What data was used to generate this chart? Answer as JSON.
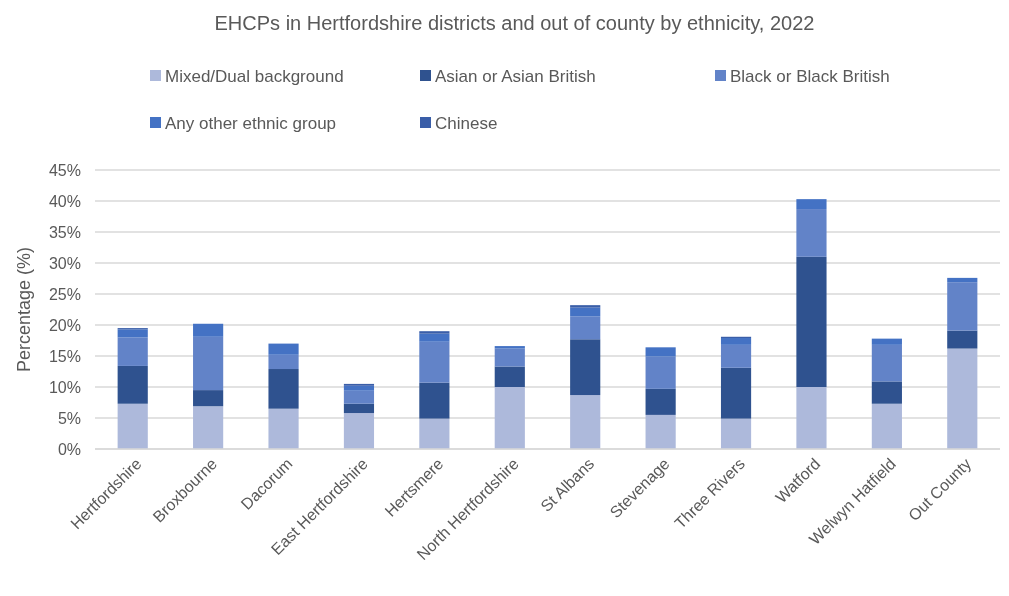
{
  "chart_data": {
    "type": "bar",
    "stacked": true,
    "title": "EHCPs in Hertfordshire districts and out of county by ethnicity, 2022",
    "ylabel": "Percentage (%)",
    "categories": [
      "Hertfordshire",
      "Broxbourne",
      "Dacorum",
      "East Hertfordshire",
      "Hertsmere",
      "North Hertfordshire",
      "St Albans",
      "Stevenage",
      "Three Rivers",
      "Watford",
      "Welwyn Hatfield",
      "Out County"
    ],
    "series": [
      {
        "name": "Mixed/Dual background",
        "color": "#adb9db",
        "values": [
          7.3,
          6.9,
          6.5,
          5.8,
          4.9,
          10.0,
          8.7,
          5.5,
          4.9,
          10.0,
          7.3,
          16.2
        ]
      },
      {
        "name": "Asian or Asian British",
        "color": "#2f528f",
        "values": [
          6.1,
          2.6,
          6.4,
          1.5,
          5.8,
          3.3,
          9.0,
          4.2,
          8.2,
          21.0,
          3.6,
          2.9
        ]
      },
      {
        "name": "Black or Black British",
        "color": "#6283c8",
        "values": [
          4.6,
          8.6,
          2.3,
          2.1,
          6.6,
          2.9,
          3.7,
          5.2,
          3.7,
          7.7,
          5.9,
          7.8
        ]
      },
      {
        "name": "Any other ethnic group",
        "color": "#4472c4",
        "values": [
          1.3,
          2.1,
          1.8,
          0.8,
          1.3,
          0.4,
          1.4,
          1.5,
          1.1,
          1.6,
          1.0,
          0.7
        ]
      },
      {
        "name": "Chinese",
        "color": "#3a5ea8",
        "values": [
          0.2,
          0,
          0,
          0.3,
          0.4,
          0,
          0.4,
          0,
          0.2,
          0,
          0,
          0
        ]
      }
    ],
    "ylim": [
      0,
      45
    ],
    "yticks": [
      {
        "value": 0,
        "label": "0%"
      },
      {
        "value": 5,
        "label": "5%"
      },
      {
        "value": 10,
        "label": "10%"
      },
      {
        "value": 15,
        "label": "15%"
      },
      {
        "value": 20,
        "label": "20%"
      },
      {
        "value": 25,
        "label": "25%"
      },
      {
        "value": 30,
        "label": "30%"
      },
      {
        "value": 35,
        "label": "35%"
      },
      {
        "value": 40,
        "label": "40%"
      },
      {
        "value": 45,
        "label": "45%"
      }
    ],
    "grid": "y",
    "legend": "top"
  }
}
